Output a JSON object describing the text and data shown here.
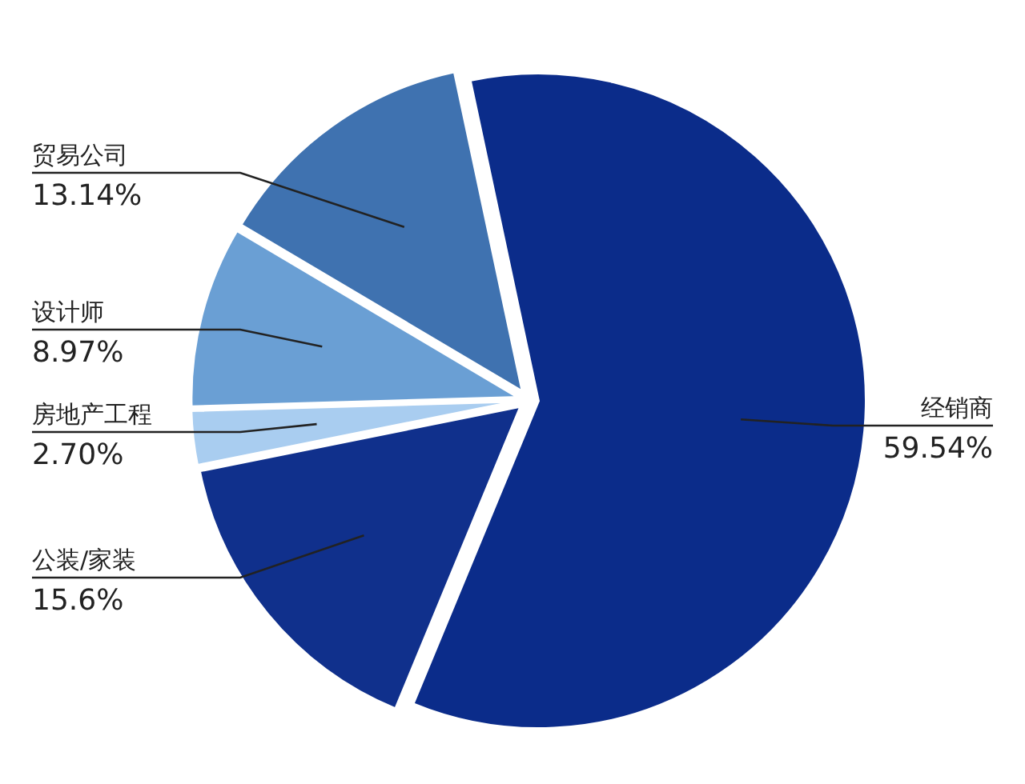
{
  "chart_data": {
    "type": "pie",
    "categories": [
      "经销商",
      "公装/家装",
      "房地产工程",
      "设计师",
      "贸易公司"
    ],
    "values": [
      59.54,
      15.6,
      2.7,
      8.97,
      13.14
    ],
    "value_labels": [
      "59.54%",
      "15.6%",
      "2.70%",
      "8.97%",
      "13.14%"
    ],
    "colors": [
      "#0b2c8a",
      "#10308c",
      "#a9cdf0",
      "#6a9fd4",
      "#3f72b0"
    ]
  }
}
